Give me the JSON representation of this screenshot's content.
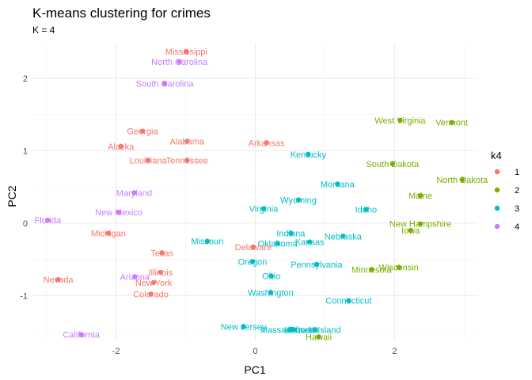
{
  "chart_data": {
    "type": "scatter",
    "title": "K-means clustering for crimes",
    "subtitle": "K = 4",
    "xlabel": "PC1",
    "ylabel": "PC2",
    "xlim": [
      -3.2,
      3.2
    ],
    "ylim": [
      -1.62,
      2.48
    ],
    "x_ticks": [
      -2,
      0,
      2
    ],
    "x_tick_labels": [
      "-2",
      "0",
      "2"
    ],
    "y_ticks": [
      -1,
      0,
      1,
      2
    ],
    "y_tick_labels": [
      "-1",
      "0",
      "1",
      "2"
    ],
    "grid": true,
    "legend": {
      "title": "k4",
      "position": "right",
      "entries": [
        "1",
        "2",
        "3",
        "4"
      ]
    },
    "colors": {
      "1": "#F8766D",
      "2": "#7CAE00",
      "3": "#00BFC4",
      "4": "#C77CFF"
    },
    "points": [
      {
        "label": "Mississippi",
        "x": -0.99,
        "y": 2.37,
        "cluster": "1"
      },
      {
        "label": "North Carolina",
        "x": -1.09,
        "y": 2.23,
        "cluster": "4"
      },
      {
        "label": "South Carolina",
        "x": -1.3,
        "y": 1.93,
        "cluster": "4"
      },
      {
        "label": "Georgia",
        "x": -1.62,
        "y": 1.27,
        "cluster": "1"
      },
      {
        "label": "Alabama",
        "x": -0.98,
        "y": 1.13,
        "cluster": "1"
      },
      {
        "label": "Arkansas",
        "x": 0.16,
        "y": 1.11,
        "cluster": "1"
      },
      {
        "label": "Alaska",
        "x": -1.93,
        "y": 1.06,
        "cluster": "1"
      },
      {
        "label": "Louisiana",
        "x": -1.54,
        "y": 0.87,
        "cluster": "1"
      },
      {
        "label": "Tennessee",
        "x": -0.98,
        "y": 0.87,
        "cluster": "1"
      },
      {
        "label": "Kentucky",
        "x": 0.76,
        "y": 0.95,
        "cluster": "3"
      },
      {
        "label": "West Virginia",
        "x": 2.08,
        "y": 1.42,
        "cluster": "2"
      },
      {
        "label": "Vermont",
        "x": 2.82,
        "y": 1.39,
        "cluster": "2"
      },
      {
        "label": "South Dakota",
        "x": 1.97,
        "y": 0.82,
        "cluster": "2"
      },
      {
        "label": "North Dakota",
        "x": 2.97,
        "y": 0.6,
        "cluster": "2"
      },
      {
        "label": "Montana",
        "x": 1.18,
        "y": 0.54,
        "cluster": "3"
      },
      {
        "label": "Maine",
        "x": 2.37,
        "y": 0.38,
        "cluster": "2"
      },
      {
        "label": "Maryland",
        "x": -1.74,
        "y": 0.42,
        "cluster": "4"
      },
      {
        "label": "Wyoming",
        "x": 0.62,
        "y": 0.32,
        "cluster": "3"
      },
      {
        "label": "Virginia",
        "x": 0.12,
        "y": 0.2,
        "cluster": "3"
      },
      {
        "label": "Idaho",
        "x": 1.59,
        "y": 0.19,
        "cluster": "3"
      },
      {
        "label": "New Mexico",
        "x": -1.96,
        "y": 0.15,
        "cluster": "4"
      },
      {
        "label": "Florida",
        "x": -2.98,
        "y": 0.04,
        "cluster": "4"
      },
      {
        "label": "New Hampshire",
        "x": 2.37,
        "y": -0.01,
        "cluster": "2"
      },
      {
        "label": "Iowa",
        "x": 2.23,
        "y": -0.1,
        "cluster": "2"
      },
      {
        "label": "Michigan",
        "x": -2.11,
        "y": -0.14,
        "cluster": "1"
      },
      {
        "label": "Indiana",
        "x": 0.51,
        "y": -0.14,
        "cluster": "3"
      },
      {
        "label": "Nebraska",
        "x": 1.26,
        "y": -0.18,
        "cluster": "3"
      },
      {
        "label": "Missouri",
        "x": -0.69,
        "y": -0.25,
        "cluster": "3"
      },
      {
        "label": "Kansas",
        "x": 0.78,
        "y": -0.26,
        "cluster": "3"
      },
      {
        "label": "Oklahoma",
        "x": 0.32,
        "y": -0.28,
        "cluster": "3"
      },
      {
        "label": "Delaware",
        "x": -0.03,
        "y": -0.33,
        "cluster": "1"
      },
      {
        "label": "Texas",
        "x": -1.34,
        "y": -0.41,
        "cluster": "1"
      },
      {
        "label": "Oregon",
        "x": -0.04,
        "y": -0.53,
        "cluster": "3"
      },
      {
        "label": "Pennsylvania",
        "x": 0.88,
        "y": -0.57,
        "cluster": "3"
      },
      {
        "label": "Wisconsin",
        "x": 2.06,
        "y": -0.61,
        "cluster": "2"
      },
      {
        "label": "Minnesota",
        "x": 1.67,
        "y": -0.64,
        "cluster": "2"
      },
      {
        "label": "Illinois",
        "x": -1.36,
        "y": -0.68,
        "cluster": "1"
      },
      {
        "label": "Ohio",
        "x": 0.23,
        "y": -0.73,
        "cluster": "3"
      },
      {
        "label": "Arizona",
        "x": -1.73,
        "y": -0.74,
        "cluster": "4"
      },
      {
        "label": "Nevada",
        "x": -2.83,
        "y": -0.78,
        "cluster": "1"
      },
      {
        "label": "New York",
        "x": -1.46,
        "y": -0.82,
        "cluster": "1"
      },
      {
        "label": "Colorado",
        "x": -1.5,
        "y": -0.98,
        "cluster": "1"
      },
      {
        "label": "Washington",
        "x": 0.22,
        "y": -0.96,
        "cluster": "3"
      },
      {
        "label": "Connecticut",
        "x": 1.34,
        "y": -1.07,
        "cluster": "3"
      },
      {
        "label": "New Jersey",
        "x": -0.17,
        "y": -1.43,
        "cluster": "3"
      },
      {
        "label": "Massachusetts",
        "x": 0.49,
        "y": -1.47,
        "cluster": "3"
      },
      {
        "label": "Utah",
        "x": 0.55,
        "y": -1.47,
        "cluster": "3"
      },
      {
        "label": "Rhode Island",
        "x": 0.86,
        "y": -1.47,
        "cluster": "3"
      },
      {
        "label": "Hawaii",
        "x": 0.91,
        "y": -1.57,
        "cluster": "2"
      },
      {
        "label": "California",
        "x": -2.5,
        "y": -1.54,
        "cluster": "4"
      }
    ]
  }
}
